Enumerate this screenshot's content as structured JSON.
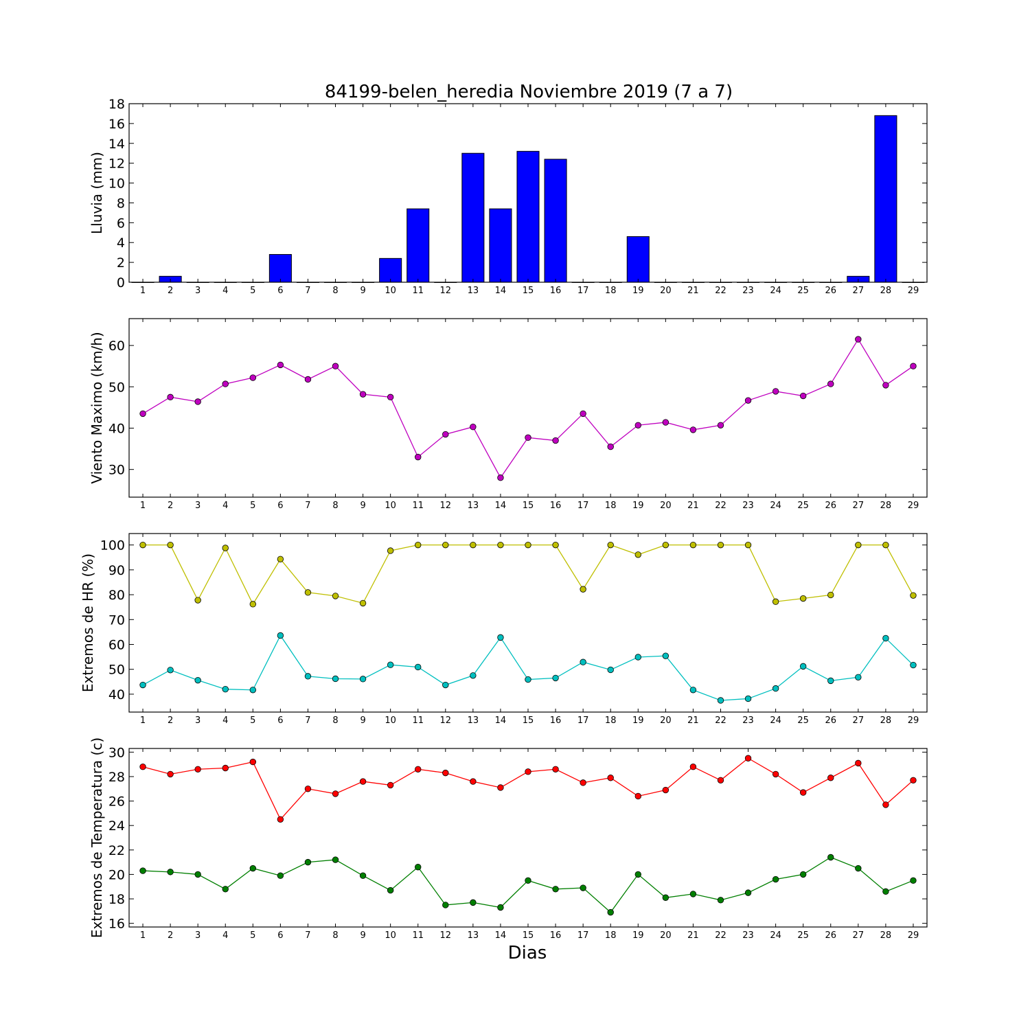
{
  "chart_data": [
    {
      "type": "bar",
      "title": "84199-belen_heredia Noviembre 2019  (7 a 7)",
      "ylabel": "Lluvia (mm)",
      "xlabel": "",
      "x": [
        1,
        2,
        3,
        4,
        5,
        6,
        7,
        8,
        9,
        10,
        11,
        12,
        13,
        14,
        15,
        16,
        17,
        18,
        19,
        20,
        21,
        22,
        23,
        24,
        25,
        26,
        27,
        28,
        29
      ],
      "xlim": [
        0.5,
        29.5
      ],
      "ylim": [
        0,
        18
      ],
      "yticks": [
        0,
        2,
        4,
        6,
        8,
        10,
        12,
        14,
        16,
        18
      ],
      "bar_color": "#0000ff",
      "values": [
        0,
        0.6,
        0,
        0,
        0,
        2.8,
        0,
        0,
        0,
        2.4,
        7.4,
        0,
        13.0,
        7.4,
        13.2,
        12.4,
        0,
        0,
        4.6,
        0,
        0,
        0,
        0,
        0,
        0,
        0,
        0.6,
        16.8,
        0
      ]
    },
    {
      "type": "line",
      "ylabel": "Viento Maximo (km/h)",
      "xlabel": "",
      "x": [
        1,
        2,
        3,
        4,
        5,
        6,
        7,
        8,
        9,
        10,
        11,
        12,
        13,
        14,
        15,
        16,
        17,
        18,
        19,
        20,
        21,
        22,
        23,
        24,
        25,
        26,
        27,
        28,
        29
      ],
      "xlim": [
        0.5,
        29.5
      ],
      "ylim": [
        23.3,
        66.5
      ],
      "yticks": [
        30,
        40,
        50,
        60
      ],
      "series": [
        {
          "color": "#bf00bf",
          "values": [
            43.5,
            47.5,
            46.4,
            50.7,
            52.2,
            55.3,
            51.8,
            55.0,
            48.2,
            47.5,
            33.0,
            38.5,
            40.3,
            28.0,
            37.7,
            37.0,
            43.5,
            35.5,
            40.7,
            41.4,
            39.6,
            40.7,
            46.7,
            48.9,
            47.8,
            50.7,
            61.5,
            50.4,
            55.0
          ]
        }
      ]
    },
    {
      "type": "line",
      "ylabel": "Extremos de HR (%)",
      "xlabel": "",
      "x": [
        1,
        2,
        3,
        4,
        5,
        6,
        7,
        8,
        9,
        10,
        11,
        12,
        13,
        14,
        15,
        16,
        17,
        18,
        19,
        20,
        21,
        22,
        23,
        24,
        25,
        26,
        27,
        28,
        29
      ],
      "xlim": [
        0.5,
        29.5
      ],
      "ylim": [
        32.8,
        104.6
      ],
      "yticks": [
        40,
        50,
        60,
        70,
        80,
        90,
        100
      ],
      "series": [
        {
          "color": "#bfbf00",
          "values": [
            100,
            100,
            77.8,
            98.8,
            76.2,
            94.3,
            80.9,
            79.5,
            76.6,
            97.7,
            100,
            100,
            100,
            100,
            100,
            100,
            82.2,
            100,
            96.1,
            100,
            100,
            100,
            100,
            77.2,
            78.5,
            79.9,
            100,
            100,
            79.7
          ]
        },
        {
          "color": "#00bfbf",
          "values": [
            43.7,
            49.7,
            45.6,
            42.0,
            41.7,
            63.6,
            47.2,
            46.2,
            46.1,
            51.8,
            50.9,
            43.7,
            47.5,
            62.8,
            45.9,
            46.5,
            52.9,
            49.8,
            54.9,
            55.4,
            41.7,
            37.5,
            38.2,
            42.3,
            51.2,
            45.4,
            46.8,
            62.5,
            51.7
          ]
        }
      ]
    },
    {
      "type": "line",
      "ylabel": "Extremos de Temperatura (c)",
      "xlabel": "Dias",
      "x": [
        1,
        2,
        3,
        4,
        5,
        6,
        7,
        8,
        9,
        10,
        11,
        12,
        13,
        14,
        15,
        16,
        17,
        18,
        19,
        20,
        21,
        22,
        23,
        24,
        25,
        26,
        27,
        28,
        29
      ],
      "xlim": [
        0.5,
        29.5
      ],
      "ylim": [
        15.7,
        30.3
      ],
      "yticks": [
        16,
        18,
        20,
        22,
        24,
        26,
        28,
        30
      ],
      "series": [
        {
          "color": "#ff0000",
          "values": [
            28.8,
            28.2,
            28.6,
            28.7,
            29.2,
            24.5,
            27.0,
            26.6,
            27.6,
            27.3,
            28.6,
            28.3,
            27.6,
            27.1,
            28.4,
            28.6,
            27.5,
            27.9,
            26.4,
            26.9,
            28.8,
            27.7,
            29.5,
            28.2,
            26.7,
            27.9,
            29.1,
            25.7,
            27.7
          ]
        },
        {
          "color": "#007f00",
          "values": [
            20.3,
            20.2,
            20.0,
            18.8,
            20.5,
            19.9,
            21.0,
            21.2,
            19.9,
            18.7,
            20.6,
            17.5,
            17.7,
            17.3,
            19.5,
            18.8,
            18.9,
            16.9,
            20.0,
            18.1,
            18.4,
            17.9,
            18.5,
            19.6,
            20.0,
            21.4,
            20.5,
            18.6,
            19.5
          ]
        }
      ]
    }
  ]
}
